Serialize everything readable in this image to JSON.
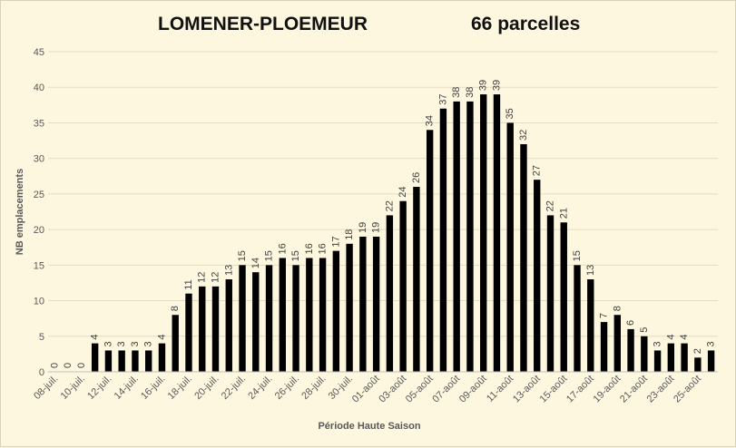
{
  "chart_data": {
    "type": "bar",
    "title": "LOMENER-PLOEMEUR",
    "subtitle": "66 parcelles",
    "xlabel": "Période Haute Saison",
    "ylabel": "NB emplacements",
    "ylim": [
      0,
      45
    ],
    "yticks": [
      0,
      5,
      10,
      15,
      20,
      25,
      30,
      35,
      40,
      45
    ],
    "grid": true,
    "bar_color": "#000000",
    "values": [
      0,
      0,
      0,
      4,
      3,
      3,
      3,
      3,
      4,
      8,
      11,
      12,
      12,
      13,
      15,
      14,
      15,
      16,
      15,
      16,
      16,
      17,
      18,
      19,
      19,
      22,
      24,
      26,
      34,
      37,
      38,
      38,
      39,
      39,
      35,
      32,
      27,
      22,
      21,
      15,
      13,
      7,
      8,
      6,
      5,
      3,
      4,
      4,
      2,
      3
    ],
    "x_tick_labels": [
      "08-juil.",
      "10-juil.",
      "12-juil.",
      "14-juil.",
      "16-juil.",
      "18-juil.",
      "20-juil.",
      "22-juil.",
      "24-juil.",
      "26-juil.",
      "28-juil.",
      "30-juil.",
      "01-août",
      "03-août",
      "05-août",
      "07-août",
      "09-août",
      "11-août",
      "13-août",
      "15-août",
      "17-août",
      "19-août",
      "21-août",
      "23-août",
      "25-août"
    ]
  }
}
